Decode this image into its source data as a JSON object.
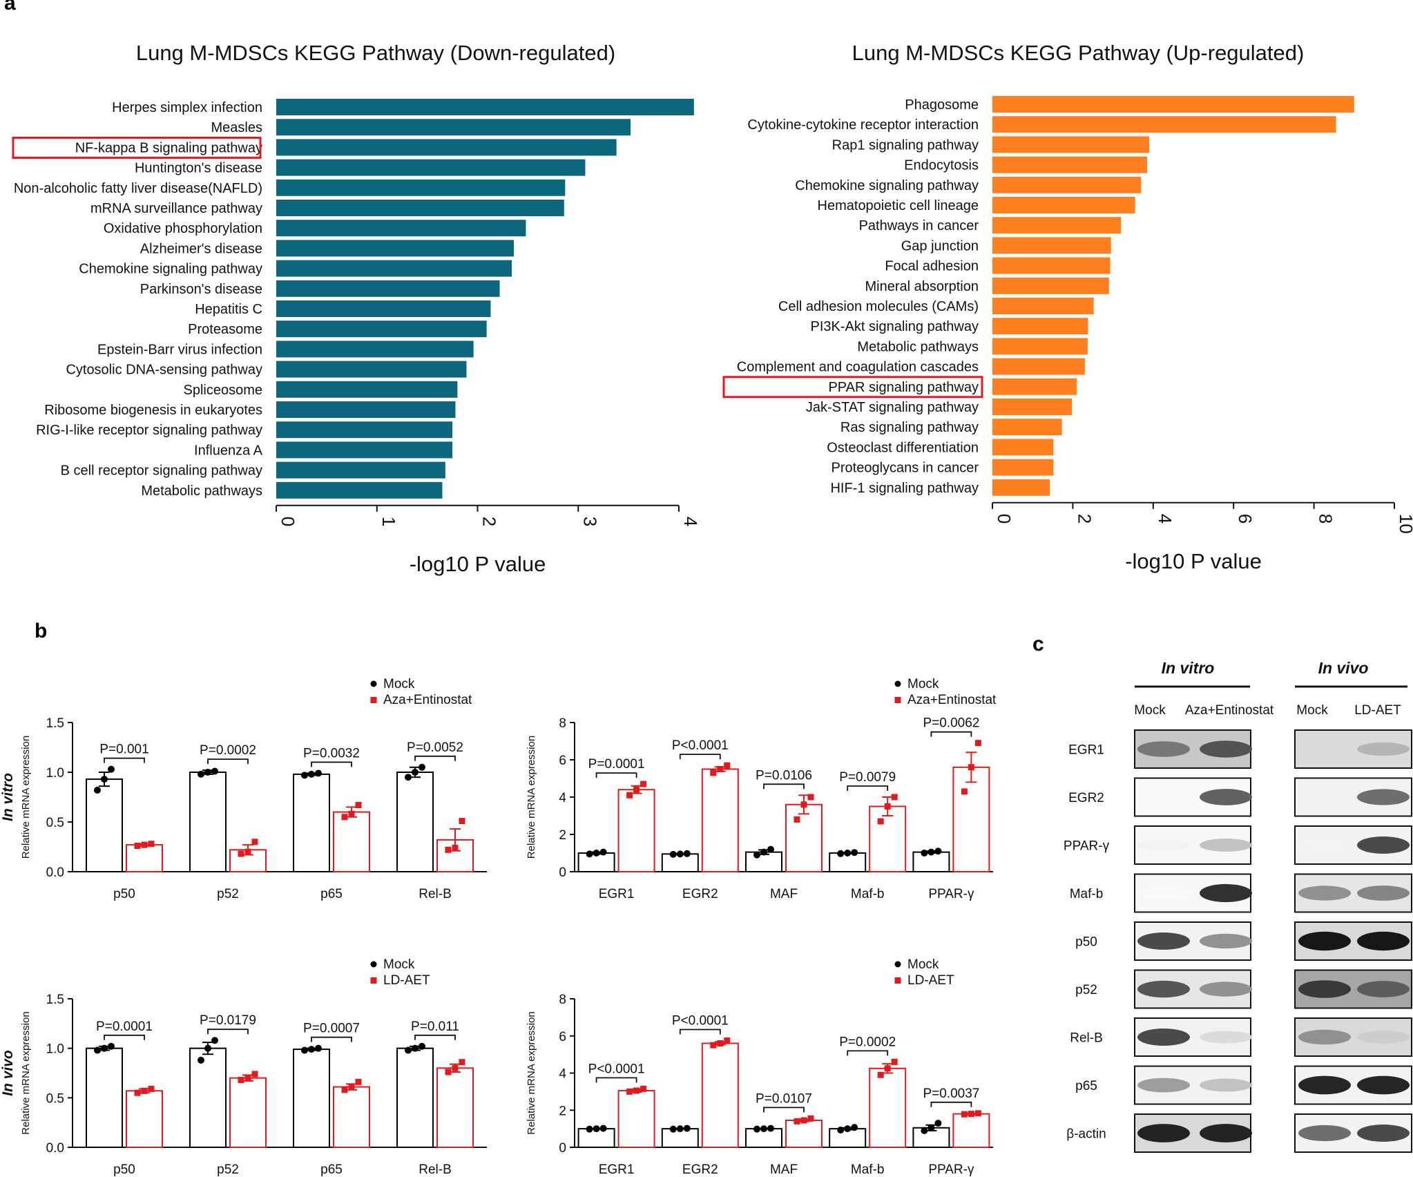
{
  "panel_labels": {
    "a": "a",
    "b": "b",
    "c": "c"
  },
  "colors": {
    "down": "#0c667e",
    "up": "#ff7f1f",
    "mock": "#000000",
    "treat": "#e31a1c",
    "highlight": "#e31a1c"
  },
  "chart_data": [
    {
      "id": "kegg-down",
      "type": "bar",
      "orientation": "horizontal",
      "title": "Lung M-MDSCs KEGG Pathway (Down-regulated)",
      "xlabel": "-log10  P value",
      "ylabel": "",
      "xlim": [
        0,
        4
      ],
      "xticks": [
        "0",
        "1",
        "2",
        "3",
        "4"
      ],
      "highlight": "NF-kappa B signaling pathway",
      "categories": [
        "Herpes simplex infection",
        "Measles",
        "NF-kappa B signaling pathway",
        "Huntington's disease",
        "Non-alcoholic fatty liver disease(NAFLD)",
        "mRNA  surveillance pathway",
        "Oxidative phosphorylation",
        "Alzheimer's disease",
        "Chemokine signaling pathway",
        "Parkinson's disease",
        "Hepatitis C",
        "Proteasome",
        "Epstein-Barr virus infection",
        "Cytosolic DNA-sensing pathway",
        "Spliceosome",
        "Ribosome biogenesis in eukaryotes",
        "RIG-I-like receptor signaling pathway",
        "Influenza  A",
        "B cell receptor signaling pathway",
        "Metabolic pathways"
      ],
      "values": [
        4.15,
        3.52,
        3.38,
        3.07,
        2.87,
        2.86,
        2.48,
        2.36,
        2.34,
        2.22,
        2.13,
        2.09,
        1.96,
        1.89,
        1.8,
        1.78,
        1.75,
        1.75,
        1.68,
        1.65
      ]
    },
    {
      "id": "kegg-up",
      "type": "bar",
      "orientation": "horizontal",
      "title": "Lung M-MDSCs KEGG Pathway (Up-regulated)",
      "xlabel": "-log10  P value",
      "ylabel": "",
      "xlim": [
        0,
        10
      ],
      "xticks": [
        "0",
        "2",
        "4",
        "6",
        "8",
        "10"
      ],
      "highlight": "PPAR signaling pathway",
      "categories": [
        "Phagosome",
        "Cytokine-cytokine receptor interaction",
        "Rap1 signaling pathway",
        "Endocytosis",
        "Chemokine signaling pathway",
        "Hematopoietic cell lineage",
        "Pathways in cancer",
        "Gap junction",
        "Focal adhesion",
        "Mineral absorption",
        "Cell adhesion molecules (CAMs)",
        "PI3K-Akt signaling pathway",
        "Metabolic pathways",
        "Complement  and coagulation cascades",
        "PPAR signaling pathway",
        "Jak-STAT signaling pathway",
        "Ras signaling pathway",
        "Osteoclast differentiation",
        "Proteoglycans in cancer",
        "HIF-1 signaling pathway"
      ],
      "values": [
        9.0,
        8.55,
        3.9,
        3.85,
        3.7,
        3.55,
        3.2,
        2.95,
        2.93,
        2.9,
        2.52,
        2.38,
        2.37,
        2.3,
        2.1,
        1.98,
        1.73,
        1.52,
        1.52,
        1.43
      ]
    },
    {
      "id": "b-vitro-nfkb",
      "type": "bar",
      "row_label": "In vitro",
      "ylabel": "Relative  mRNA  expression",
      "ylim": [
        0,
        1.5
      ],
      "yticks": [
        "0.0",
        "0.5",
        "1.0",
        "1.5"
      ],
      "categories": [
        "p50",
        "p52",
        "p65",
        "Rel-B"
      ],
      "legend": [
        "Mock",
        "Aza+Entinostat"
      ],
      "series": [
        {
          "name": "Mock",
          "values": [
            0.93,
            1.0,
            0.98,
            1.0
          ],
          "sem": [
            0.07,
            0.02,
            0.01,
            0.05
          ],
          "points": [
            [
              0.82,
              0.93,
              1.03
            ],
            [
              0.98,
              1.0,
              1.01
            ],
            [
              0.97,
              0.98,
              0.99
            ],
            [
              0.95,
              1.0,
              1.05
            ]
          ]
        },
        {
          "name": "Aza+Entinostat",
          "values": [
            0.27,
            0.22,
            0.6,
            0.32
          ],
          "sem": [
            0.01,
            0.05,
            0.05,
            0.11
          ],
          "points": [
            [
              0.26,
              0.27,
              0.28
            ],
            [
              0.18,
              0.2,
              0.3
            ],
            [
              0.55,
              0.58,
              0.67
            ],
            [
              0.22,
              0.24,
              0.51
            ]
          ]
        }
      ],
      "pvalues": [
        "P=0.001",
        "P=0.0002",
        "P=0.0032",
        "P=0.0052"
      ]
    },
    {
      "id": "b-vitro-tf",
      "type": "bar",
      "ylabel": "Relative  mRNA  expression",
      "ylim": [
        0,
        8
      ],
      "yticks": [
        "0",
        "2",
        "4",
        "6",
        "8"
      ],
      "categories": [
        "EGR1",
        "EGR2",
        "MAF",
        "Maf-b",
        "PPAR-γ"
      ],
      "legend": [
        "Mock",
        "Aza+Entinostat"
      ],
      "series": [
        {
          "name": "Mock",
          "values": [
            1.0,
            0.95,
            1.05,
            1.0,
            1.05
          ],
          "sem": [
            0.05,
            0.02,
            0.12,
            0.03,
            0.05
          ],
          "points": [
            [
              0.95,
              1.0,
              1.05
            ],
            [
              0.93,
              0.95,
              0.97
            ],
            [
              0.9,
              1.05,
              1.2
            ],
            [
              0.97,
              1.0,
              1.03
            ],
            [
              1.0,
              1.05,
              1.1
            ]
          ]
        },
        {
          "name": "Aza+Entinostat",
          "values": [
            4.4,
            5.5,
            3.6,
            3.5,
            5.6
          ],
          "sem": [
            0.2,
            0.12,
            0.5,
            0.5,
            0.8
          ],
          "points": [
            [
              4.1,
              4.4,
              4.7
            ],
            [
              5.3,
              5.5,
              5.7
            ],
            [
              2.8,
              3.6,
              4.0
            ],
            [
              2.7,
              3.5,
              4.0
            ],
            [
              4.3,
              5.6,
              6.9
            ]
          ]
        }
      ],
      "pvalues": [
        "P=0.0001",
        "P<0.0001",
        "P=0.0106",
        "P=0.0079",
        "P=0.0062"
      ]
    },
    {
      "id": "b-vivo-nfkb",
      "type": "bar",
      "row_label": "In vivo",
      "ylabel": "Relative  mRNA  expression",
      "ylim": [
        0,
        1.5
      ],
      "yticks": [
        "0.0",
        "0.5",
        "1.0",
        "1.5"
      ],
      "categories": [
        "p50",
        "p52",
        "p65",
        "Rel-B"
      ],
      "legend": [
        "Mock",
        "LD-AET"
      ],
      "series": [
        {
          "name": "Mock",
          "values": [
            1.0,
            1.0,
            0.99,
            1.0
          ],
          "sem": [
            0.02,
            0.06,
            0.01,
            0.02
          ],
          "points": [
            [
              0.98,
              1.0,
              1.02
            ],
            [
              0.88,
              1.0,
              1.08
            ],
            [
              0.98,
              0.99,
              1.0
            ],
            [
              0.98,
              1.0,
              1.02
            ]
          ]
        },
        {
          "name": "LD-AET",
          "values": [
            0.57,
            0.7,
            0.61,
            0.8
          ],
          "sem": [
            0.02,
            0.03,
            0.03,
            0.04
          ],
          "points": [
            [
              0.55,
              0.57,
              0.59
            ],
            [
              0.68,
              0.7,
              0.74
            ],
            [
              0.58,
              0.61,
              0.66
            ],
            [
              0.76,
              0.8,
              0.86
            ]
          ]
        }
      ],
      "pvalues": [
        "P=0.0001",
        "P=0.0179",
        "P=0.0007",
        "P=0.011"
      ]
    },
    {
      "id": "b-vivo-tf",
      "type": "bar",
      "ylabel": "Relative  mRNA  expression",
      "ylim": [
        0,
        8
      ],
      "yticks": [
        "0",
        "2",
        "4",
        "6",
        "8"
      ],
      "categories": [
        "EGR1",
        "EGR2",
        "MAF",
        "Maf-b",
        "PPAR-γ"
      ],
      "legend": [
        "Mock",
        "LD-AET"
      ],
      "series": [
        {
          "name": "Mock",
          "values": [
            1.0,
            1.0,
            1.0,
            1.0,
            1.05
          ],
          "sem": [
            0.01,
            0.01,
            0.01,
            0.05,
            0.15
          ],
          "points": [
            [
              0.98,
              1.0,
              1.02
            ],
            [
              0.98,
              1.0,
              1.02
            ],
            [
              0.98,
              1.0,
              1.02
            ],
            [
              0.93,
              1.0,
              1.07
            ],
            [
              0.9,
              1.05,
              1.3
            ]
          ]
        },
        {
          "name": "LD-AET",
          "values": [
            3.05,
            5.6,
            1.45,
            4.25,
            1.8
          ],
          "sem": [
            0.08,
            0.08,
            0.06,
            0.25,
            0.03
          ],
          "points": [
            [
              3.0,
              3.05,
              3.15
            ],
            [
              5.5,
              5.6,
              5.75
            ],
            [
              1.4,
              1.45,
              1.55
            ],
            [
              3.9,
              4.25,
              4.6
            ],
            [
              1.78,
              1.8,
              1.83
            ]
          ]
        }
      ],
      "pvalues": [
        "P<0.0001",
        "P<0.0001",
        "P=0.0107",
        "P=0.0002",
        "P=0.0037"
      ]
    }
  ],
  "western": {
    "groups": [
      {
        "title": "In vitro",
        "lanes": [
          "Mock",
          "Aza+Entinostat"
        ]
      },
      {
        "title": "In vivo",
        "lanes": [
          "Mock",
          "LD-AET"
        ]
      }
    ],
    "proteins": [
      "EGR1",
      "EGR2",
      "PPAR-γ",
      "Maf-b",
      "p50",
      "p52",
      "Rel-B",
      "p65",
      "β-actin"
    ],
    "intensity": [
      [
        [
          0.55,
          0.7
        ],
        [
          0.15,
          0.3
        ]
      ],
      [
        [
          0.0,
          0.65
        ],
        [
          0.0,
          0.6
        ]
      ],
      [
        [
          0.05,
          0.25
        ],
        [
          0.05,
          0.75
        ]
      ],
      [
        [
          0.02,
          0.85
        ],
        [
          0.45,
          0.5
        ]
      ],
      [
        [
          0.75,
          0.45
        ],
        [
          0.95,
          0.95
        ]
      ],
      [
        [
          0.7,
          0.45
        ],
        [
          0.8,
          0.65
        ]
      ],
      [
        [
          0.75,
          0.15
        ],
        [
          0.45,
          0.2
        ]
      ],
      [
        [
          0.4,
          0.25
        ],
        [
          0.9,
          0.9
        ]
      ],
      [
        [
          0.9,
          0.9
        ],
        [
          0.6,
          0.75
        ]
      ]
    ],
    "background": [
      [
        0.22,
        0.14
      ],
      [
        0.02,
        0.05
      ],
      [
        0.03,
        0.05
      ],
      [
        0.03,
        0.1
      ],
      [
        0.05,
        0.15
      ],
      [
        0.1,
        0.35
      ],
      [
        0.05,
        0.15
      ],
      [
        0.05,
        0.05
      ],
      [
        0.15,
        0.05
      ]
    ]
  }
}
